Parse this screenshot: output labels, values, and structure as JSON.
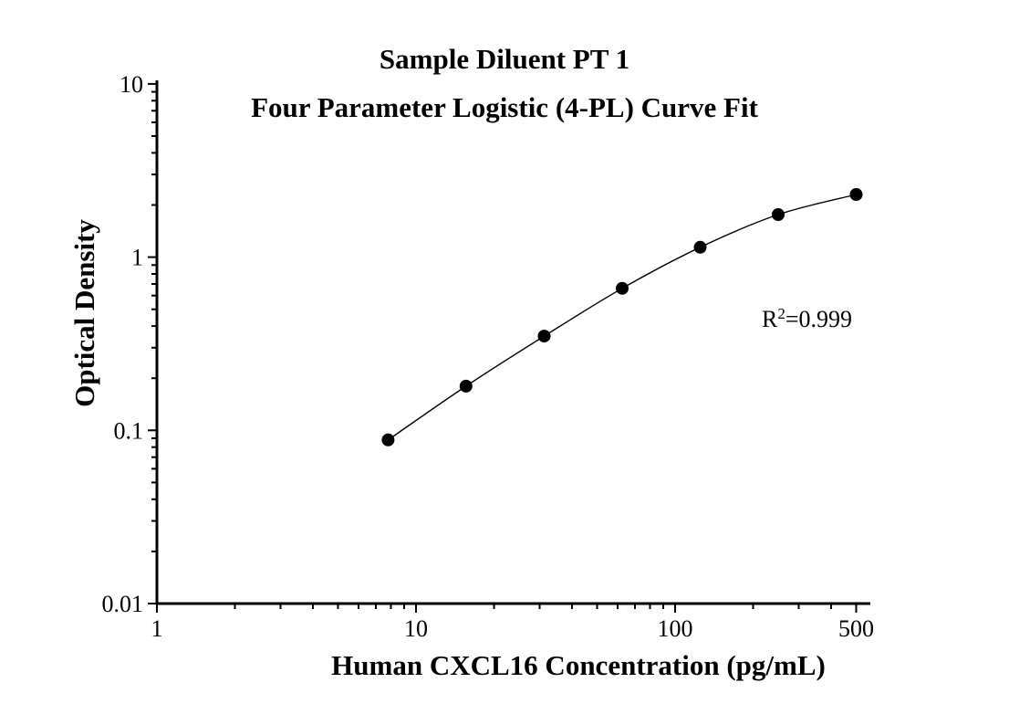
{
  "figure": {
    "background": "#ffffff",
    "ink_color": "#000000",
    "title_line1": "Sample Diluent PT 1",
    "title_line2": "Four Parameter Logistic (4-PL) Curve Fit",
    "annotation": {
      "base": "R",
      "superscript": "2",
      "rest": "=0.999"
    }
  },
  "chart_data": {
    "type": "scatter",
    "title": "Sample Diluent PT 1",
    "subtitle": "Four Parameter Logistic (4-PL) Curve Fit",
    "xlabel": "Human CXCL16 Concentration (pg/mL)",
    "ylabel": "Optical Density",
    "x_scale": "log",
    "y_scale": "log",
    "xlim": [
      1,
      560
    ],
    "ylim": [
      0.01,
      10
    ],
    "grid": false,
    "legend": "none",
    "r_squared": 0.999,
    "marker": "filled-circle",
    "line_color": "#000000",
    "marker_color": "#000000",
    "x_ticks": [
      {
        "value": 1,
        "label": "1"
      },
      {
        "value": 10,
        "label": "10"
      },
      {
        "value": 100,
        "label": "100"
      },
      {
        "value": 500,
        "label": "500"
      }
    ],
    "y_ticks": [
      {
        "value": 10,
        "label": "10"
      },
      {
        "value": 1,
        "label": "1"
      },
      {
        "value": 0.1,
        "label": "0.1"
      },
      {
        "value": 0.01,
        "label": "0.01"
      }
    ],
    "series": [
      {
        "points": [
          {
            "x": 7.8,
            "y": 0.088
          },
          {
            "x": 15.6,
            "y": 0.18
          },
          {
            "x": 31.25,
            "y": 0.35
          },
          {
            "x": 62.5,
            "y": 0.66
          },
          {
            "x": 125,
            "y": 1.14
          },
          {
            "x": 250,
            "y": 1.76
          },
          {
            "x": 500,
            "y": 2.3
          }
        ]
      }
    ]
  }
}
